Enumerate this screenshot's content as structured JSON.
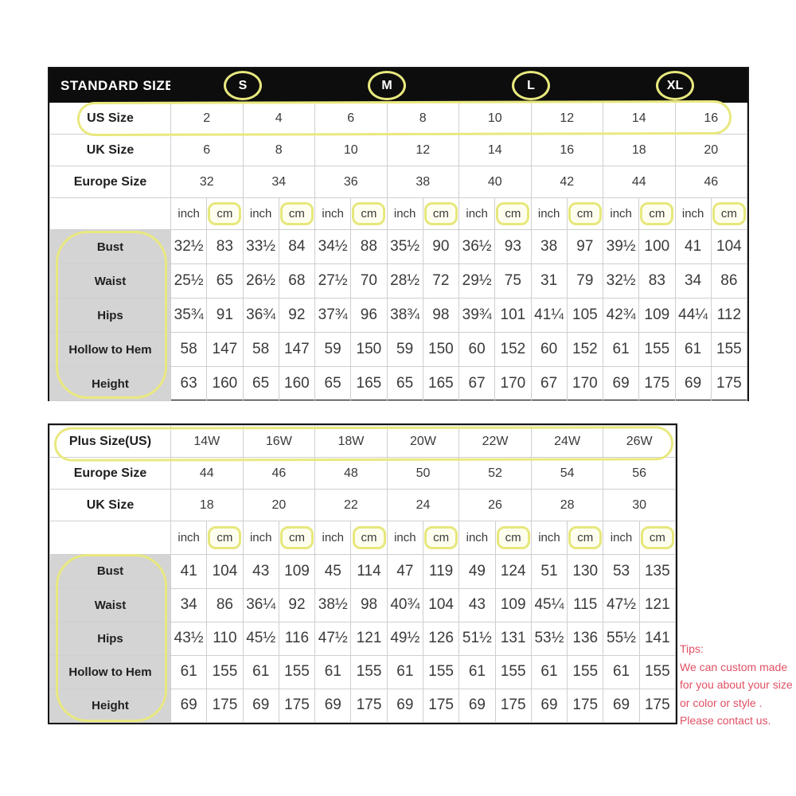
{
  "standard_table": {
    "title": "STANDARD SIZE",
    "size_groups": [
      "S",
      "M",
      "L",
      "XL"
    ],
    "columns": 8,
    "info_rows": [
      {
        "label": "US Size",
        "values": [
          "2",
          "4",
          "6",
          "8",
          "10",
          "12",
          "14",
          "16"
        ]
      },
      {
        "label": "UK Size",
        "values": [
          "6",
          "8",
          "10",
          "12",
          "14",
          "16",
          "18",
          "20"
        ]
      },
      {
        "label": "Europe Size",
        "values": [
          "32",
          "34",
          "36",
          "38",
          "40",
          "42",
          "44",
          "46"
        ]
      }
    ],
    "unit_labels": {
      "inch": "inch",
      "cm": "cm"
    },
    "measure_rows": [
      {
        "label": "Bust",
        "inch": [
          "32½",
          "33½",
          "34½",
          "35½",
          "36½",
          "38",
          "39½",
          "41"
        ],
        "cm": [
          "83",
          "84",
          "88",
          "90",
          "93",
          "97",
          "100",
          "104"
        ]
      },
      {
        "label": "Waist",
        "inch": [
          "25½",
          "26½",
          "27½",
          "28½",
          "29½",
          "31",
          "32½",
          "34"
        ],
        "cm": [
          "65",
          "68",
          "70",
          "72",
          "75",
          "79",
          "83",
          "86"
        ]
      },
      {
        "label": "Hips",
        "inch": [
          "35¾",
          "36¾",
          "37¾",
          "38¾",
          "39¾",
          "41¼",
          "42¾",
          "44¼"
        ],
        "cm": [
          "91",
          "92",
          "96",
          "98",
          "101",
          "105",
          "109",
          "112"
        ]
      },
      {
        "label": "Hollow to Hem",
        "inch": [
          "58",
          "58",
          "59",
          "59",
          "60",
          "60",
          "61",
          "61"
        ],
        "cm": [
          "147",
          "147",
          "150",
          "150",
          "152",
          "152",
          "155",
          "155"
        ]
      },
      {
        "label": "Height",
        "inch": [
          "63",
          "65",
          "65",
          "65",
          "67",
          "67",
          "69",
          "69"
        ],
        "cm": [
          "160",
          "160",
          "165",
          "165",
          "170",
          "170",
          "175",
          "175"
        ]
      }
    ]
  },
  "plus_table": {
    "columns": 7,
    "info_rows": [
      {
        "label": "Plus Size(US)",
        "values": [
          "14W",
          "16W",
          "18W",
          "20W",
          "22W",
          "24W",
          "26W"
        ]
      },
      {
        "label": "Europe Size",
        "values": [
          "44",
          "46",
          "48",
          "50",
          "52",
          "54",
          "56"
        ]
      },
      {
        "label": "UK Size",
        "values": [
          "18",
          "20",
          "22",
          "24",
          "26",
          "28",
          "30"
        ]
      }
    ],
    "unit_labels": {
      "inch": "inch",
      "cm": "cm"
    },
    "measure_rows": [
      {
        "label": "Bust",
        "inch": [
          "41",
          "43",
          "45",
          "47",
          "49",
          "51",
          "53"
        ],
        "cm": [
          "104",
          "109",
          "114",
          "119",
          "124",
          "130",
          "135"
        ]
      },
      {
        "label": "Waist",
        "inch": [
          "34",
          "36¼",
          "38½",
          "40¾",
          "43",
          "45¼",
          "47½"
        ],
        "cm": [
          "86",
          "92",
          "98",
          "104",
          "109",
          "115",
          "121"
        ]
      },
      {
        "label": "Hips",
        "inch": [
          "43½",
          "45½",
          "47½",
          "49½",
          "51½",
          "53½",
          "55½"
        ],
        "cm": [
          "110",
          "116",
          "121",
          "126",
          "131",
          "136",
          "141"
        ]
      },
      {
        "label": "Hollow to Hem",
        "inch": [
          "61",
          "61",
          "61",
          "61",
          "61",
          "61",
          "61"
        ],
        "cm": [
          "155",
          "155",
          "155",
          "155",
          "155",
          "155",
          "155"
        ]
      },
      {
        "label": "Height",
        "inch": [
          "69",
          "69",
          "69",
          "69",
          "69",
          "69",
          "69"
        ],
        "cm": [
          "175",
          "175",
          "175",
          "175",
          "175",
          "175",
          "175"
        ]
      }
    ]
  },
  "tips": {
    "title": "Tips:",
    "lines": [
      "We can custom made",
      "for you about your size",
      "or color or style .",
      "Please contact us."
    ]
  },
  "colors": {
    "highlight_yellow": "#e9e87f",
    "tips_red": "#e05064",
    "header_bg": "#0d0d0d",
    "label_gray": "#d4d4d4",
    "grid_line": "#cfcfcf"
  }
}
